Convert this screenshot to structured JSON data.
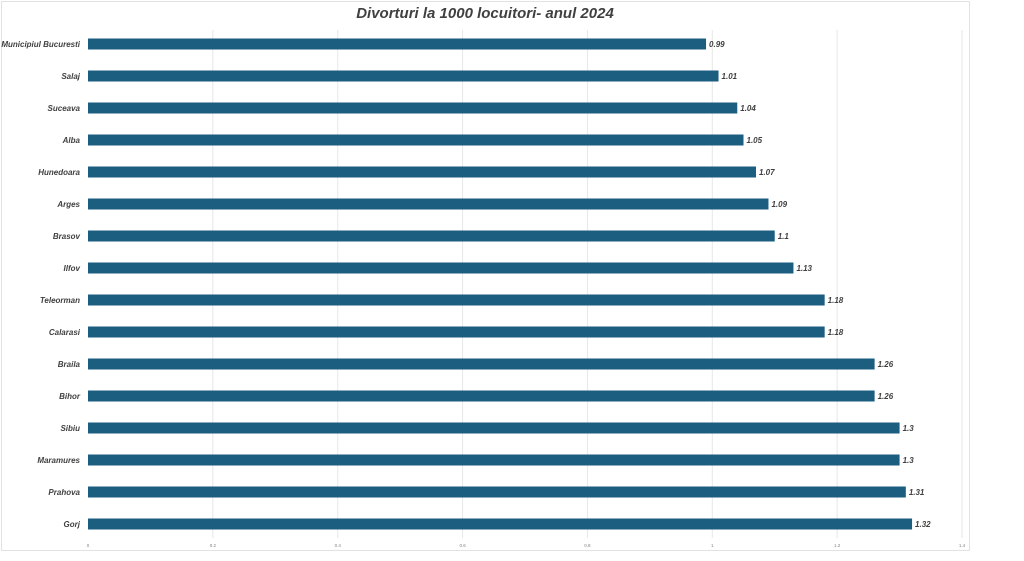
{
  "chart_data": {
    "type": "bar",
    "orientation": "horizontal",
    "title": "Divorturi la 1000 locuitori- anul 2024",
    "categories": [
      "Municipiul Bucuresti",
      "Salaj",
      "Suceava",
      "Alba",
      "Hunedoara",
      "Arges",
      "Brasov",
      "Ilfov",
      "Teleorman",
      "Calarasi",
      "Braila",
      "Bihor",
      "Sibiu",
      "Maramures",
      "Prahova",
      "Gorj"
    ],
    "values": [
      0.99,
      1.01,
      1.04,
      1.05,
      1.07,
      1.09,
      1.1,
      1.13,
      1.18,
      1.18,
      1.26,
      1.26,
      1.3,
      1.3,
      1.31,
      1.32
    ],
    "value_labels": [
      "0.99",
      "1.01",
      "1.04",
      "1.05",
      "1.07",
      "1.09",
      "1.1",
      "1.13",
      "1.18",
      "1.18",
      "1.26",
      "1.26",
      "1.3",
      "1.3",
      "1.31",
      "1.32"
    ],
    "xlim": [
      0,
      1.4
    ],
    "x_ticks": [
      "0",
      "0.2",
      "0.4",
      "0.6",
      "0.8",
      "1",
      "1.2",
      "1.4"
    ],
    "grid": true,
    "legend": "none",
    "bar_color": "#1b5e80",
    "grid_color": "#e6e6e6",
    "text_color": "#404040"
  }
}
